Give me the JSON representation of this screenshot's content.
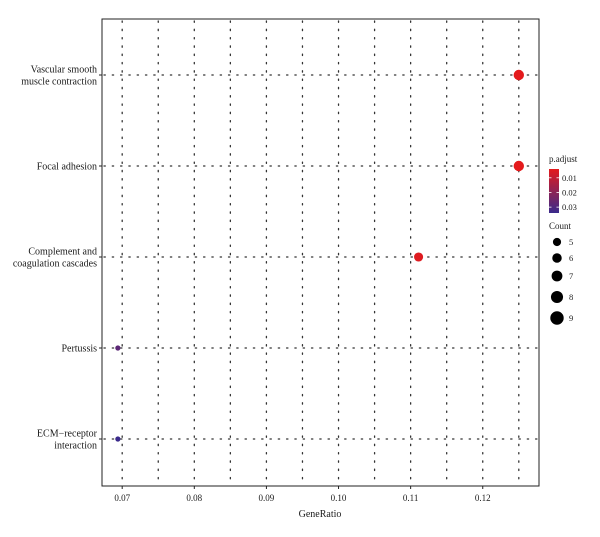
{
  "chart_data": {
    "type": "scatter",
    "title": "",
    "xlabel": "GeneRatio",
    "ylabel": "",
    "xlim": [
      0.0672,
      0.1278
    ],
    "x_ticks": [
      0.07,
      0.08,
      0.09,
      0.1,
      0.11,
      0.12
    ],
    "x_tick_labels": [
      "0.07",
      "0.08",
      "0.09",
      "0.10",
      "0.11",
      "0.12"
    ],
    "grid": true,
    "categories": [
      {
        "lines": [
          "Vascular smooth",
          "muscle contraction"
        ]
      },
      {
        "lines": [
          "Focal adhesion"
        ]
      },
      {
        "lines": [
          "Complement and",
          "coagulation cascades"
        ]
      },
      {
        "lines": [
          "Pertussis"
        ]
      },
      {
        "lines": [
          "ECM−receptor",
          "interaction"
        ]
      }
    ],
    "points": [
      {
        "category": 0,
        "x": 0.125,
        "count": 9,
        "p_adjust": 0.004
      },
      {
        "category": 1,
        "x": 0.125,
        "count": 9,
        "p_adjust": 0.004
      },
      {
        "category": 2,
        "x": 0.1111,
        "count": 8,
        "p_adjust": 0.005
      },
      {
        "category": 3,
        "x": 0.0694,
        "count": 5,
        "p_adjust": 0.028
      },
      {
        "category": 4,
        "x": 0.0694,
        "count": 5,
        "p_adjust": 0.034
      }
    ],
    "color_legend": {
      "title": "p.adjust",
      "ticks": [
        0.01,
        0.02,
        0.03
      ],
      "tick_labels": [
        "0.01",
        "0.02",
        "0.03"
      ],
      "range": [
        0.004,
        0.034
      ],
      "low_color": "#e41a1c",
      "high_color": "#3a2a8c"
    },
    "size_legend": {
      "title": "Count",
      "values": [
        5,
        6,
        7,
        8,
        9
      ],
      "labels": [
        "5",
        "6",
        "7",
        "8",
        "9"
      ]
    },
    "legend_placement": "right"
  }
}
